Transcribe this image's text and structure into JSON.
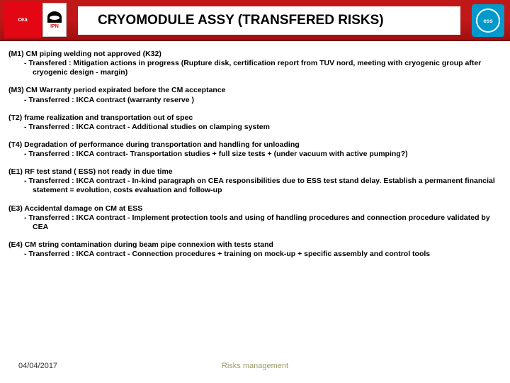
{
  "header": {
    "title": "CRYOMODULE ASSY (TRANSFERED RISKS)",
    "logo_cea": "cea",
    "logo_ipn": "IPN",
    "logo_ess": "ess"
  },
  "risks": [
    {
      "id": "(M1)",
      "head": "(M1) CM piping welding not approved (K32)",
      "sub": "-   Transfered : Mitigation actions in progress (Rupture disk, certification report from TUV nord, meeting with cryogenic group after cryogenic design - margin)"
    },
    {
      "id": "(M3)",
      "head": "(M3) CM Warranty period expirated before the CM acceptance",
      "sub": "-   Transferred  : IKCA contract  (warranty reserve )"
    },
    {
      "id": "(T2)",
      "head": "(T2) frame realization and transportation out of spec",
      "sub": "-   Transferred  : IKCA contract -  Additional studies on clamping system"
    },
    {
      "id": "(T4)",
      "head": "(T4) Degradation of performance during transportation and handling for unloading",
      "sub": "-   Transferred  : IKCA contract- Transportation studies + full size tests + (under vacuum with active pumping?)"
    },
    {
      "id": "(E1)",
      "head": "(E1) RF test stand ( ESS) not ready in due time",
      "sub": "-   Transferred  : IKCA contract - In-kind paragraph on CEA responsibilities due to ESS test stand delay. Establish a permanent financial statement = evolution, costs evaluation and follow-up"
    },
    {
      "id": "(E3)",
      "head": "(E3) Accidental damage on CM at ESS",
      "sub": "-   Transferred  : IKCA contract - Implement protection tools and using of handling procedures and connection procedure validated by CEA"
    },
    {
      "id": "(E4)",
      "head": "(E4) CM string contamination during beam pipe connexion with tests stand",
      "sub": "-   Transferred  : IKCA contract - Connection procedures + training on mock-up + specific assembly and control tools"
    }
  ],
  "footer": {
    "date": "04/04/2017",
    "title": "Risks management"
  },
  "colors": {
    "header_bg": "#c01818",
    "header_border": "#7a0c0c",
    "cea_red": "#e30613",
    "ess_blue": "#0099cc",
    "footer_text": "#9a9a66"
  },
  "typography": {
    "title_fontsize": 19,
    "body_fontsize": 10.5,
    "footer_fontsize": 11,
    "font_family": "Arial"
  }
}
